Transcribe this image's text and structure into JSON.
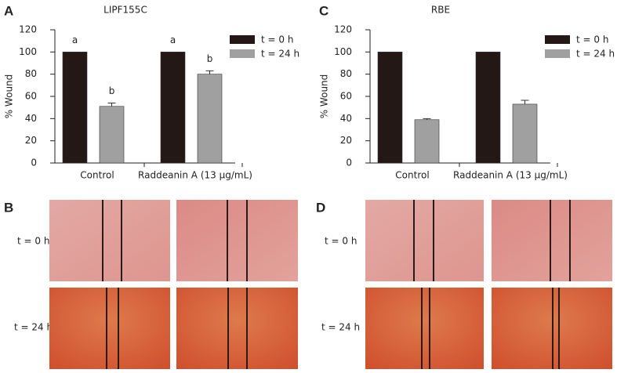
{
  "chart_data": [
    {
      "type": "bar",
      "panel_label": "A",
      "title": "LIPF155C",
      "ylabel": "% Wound",
      "categories": [
        "Control",
        "Raddeanin A (13 μg/mL)"
      ],
      "series": [
        {
          "name": "t = 0 h",
          "color": "#231815",
          "values": [
            100,
            100
          ],
          "letters": [
            "a",
            "a"
          ]
        },
        {
          "name": "t = 24 h",
          "color": "#a0a0a0",
          "values": [
            51,
            80
          ],
          "errors": [
            3,
            3
          ],
          "letters": [
            "b",
            "b"
          ]
        }
      ],
      "ylim": [
        0,
        120
      ],
      "yticks": [
        0,
        20,
        40,
        60,
        80,
        100,
        120
      ],
      "legend": "upper right"
    },
    {
      "type": "bar",
      "panel_label": "C",
      "title": "RBE",
      "ylabel": "% Wound",
      "categories": [
        "Control",
        "Raddeanin A (13 μg/mL)"
      ],
      "series": [
        {
          "name": "t = 0 h",
          "color": "#231815",
          "values": [
            100,
            100
          ]
        },
        {
          "name": "t = 24 h",
          "color": "#a0a0a0",
          "values": [
            39,
            53
          ],
          "errors": [
            1,
            3.5
          ]
        }
      ],
      "ylim": [
        0,
        120
      ],
      "yticks": [
        0,
        20,
        40,
        60,
        80,
        100,
        120
      ],
      "legend": "upper right"
    }
  ],
  "image_panels": [
    {
      "panel_label": "B",
      "row_labels": [
        "t = 0 h",
        "t = 24 h"
      ]
    },
    {
      "panel_label": "D",
      "row_labels": [
        "t = 0 h",
        "t = 24 h"
      ]
    }
  ]
}
